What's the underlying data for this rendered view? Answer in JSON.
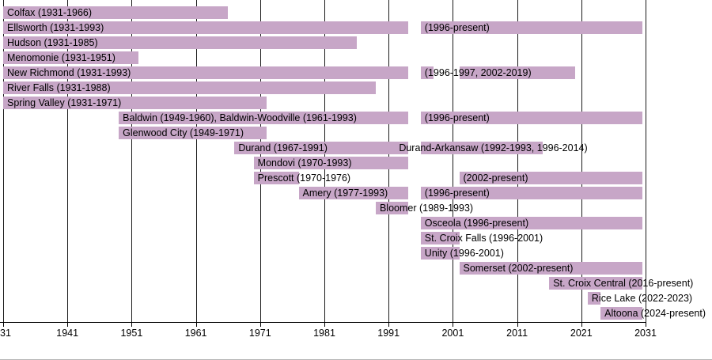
{
  "chart_data": {
    "type": "bar",
    "subtype": "horizontal-timeline-gantt",
    "title": "",
    "xlabel": "",
    "ylabel": "",
    "xlim": [
      1931,
      2031
    ],
    "grid": "vertical-on",
    "bar_color": "#c7a6c7",
    "gridline_color": "#1a1a1a",
    "axis_color": "#000000",
    "text_color": "#000000",
    "axis": {
      "ticks": [
        {
          "year": 1931,
          "label": "31",
          "align": "left"
        },
        {
          "year": 1941,
          "label": "1941"
        },
        {
          "year": 1951,
          "label": "1951"
        },
        {
          "year": 1961,
          "label": "1961"
        },
        {
          "year": 1971,
          "label": "1971"
        },
        {
          "year": 1981,
          "label": "1981"
        },
        {
          "year": 1991,
          "label": "1991"
        },
        {
          "year": 2001,
          "label": "2001"
        },
        {
          "year": 2011,
          "label": "2011"
        },
        {
          "year": 2021,
          "label": "2021"
        },
        {
          "year": 2031,
          "label": "2031"
        }
      ]
    },
    "rows": [
      {
        "name": "Colfax",
        "segments": [
          {
            "from": 1931,
            "to": 1966
          }
        ],
        "labels": [
          {
            "text": "Colfax (1931-1966)",
            "year": 1931
          }
        ]
      },
      {
        "name": "Ellsworth",
        "segments": [
          {
            "from": 1931,
            "to": 1994
          },
          {
            "from": 1996,
            "to": "present"
          }
        ],
        "labels": [
          {
            "text": "Ellsworth (1931-1993)",
            "year": 1931
          },
          {
            "text": "(1996-present)",
            "year": 1996
          }
        ]
      },
      {
        "name": "Hudson",
        "segments": [
          {
            "from": 1931,
            "to": 1986
          }
        ],
        "labels": [
          {
            "text": "Hudson (1931-1985)",
            "year": 1931
          }
        ]
      },
      {
        "name": "Menomonie",
        "segments": [
          {
            "from": 1931,
            "to": 1952
          }
        ],
        "labels": [
          {
            "text": "Menomonie (1931-1951)",
            "year": 1931
          }
        ]
      },
      {
        "name": "New Richmond",
        "segments": [
          {
            "from": 1931,
            "to": 1994
          },
          {
            "from": 1996,
            "to": 1998
          },
          {
            "from": 2002,
            "to": 2020
          }
        ],
        "labels": [
          {
            "text": "New Richmond (1931-1993)",
            "year": 1931
          },
          {
            "text": "(1996-1997, 2002-2019)",
            "year": 1996
          }
        ]
      },
      {
        "name": "River Falls",
        "segments": [
          {
            "from": 1931,
            "to": 1989
          }
        ],
        "labels": [
          {
            "text": "River Falls (1931-1988)",
            "year": 1931
          }
        ]
      },
      {
        "name": "Spring Valley",
        "segments": [
          {
            "from": 1931,
            "to": 1972
          }
        ],
        "labels": [
          {
            "text": "Spring Valley (1931-1971)",
            "year": 1931
          }
        ]
      },
      {
        "name": "Baldwin / Baldwin-Woodville",
        "segments": [
          {
            "from": 1949,
            "to": 1994
          },
          {
            "from": 1996,
            "to": "present"
          }
        ],
        "labels": [
          {
            "text": "Baldwin (1949-1960), Baldwin-Woodville (1961-1993)",
            "year": 1949
          },
          {
            "text": "(1996-present)",
            "year": 1996
          }
        ]
      },
      {
        "name": "Glenwood City",
        "segments": [
          {
            "from": 1949,
            "to": 1972
          }
        ],
        "labels": [
          {
            "text": "Glenwood City (1949-1971)",
            "year": 1949
          }
        ]
      },
      {
        "name": "Durand / Durand-Arkansaw",
        "segments": [
          {
            "from": 1967,
            "to": 1994
          },
          {
            "from": 1996,
            "to": 2015
          }
        ],
        "labels": [
          {
            "text": "Durand (1967-1991)",
            "year": 1967
          },
          {
            "text": "Durand-Arkansaw (1992-1993, 1996-2014)",
            "year": 1992
          }
        ]
      },
      {
        "name": "Mondovi",
        "segments": [
          {
            "from": 1970,
            "to": 1994
          }
        ],
        "labels": [
          {
            "text": "Mondovi (1970-1993)",
            "year": 1970
          }
        ]
      },
      {
        "name": "Prescott",
        "segments": [
          {
            "from": 1970,
            "to": 1977
          },
          {
            "from": 2002,
            "to": "present"
          }
        ],
        "labels": [
          {
            "text": "Prescott (1970-1976)",
            "year": 1970
          },
          {
            "text": "(2002-present)",
            "year": 2002
          }
        ]
      },
      {
        "name": "Amery",
        "segments": [
          {
            "from": 1977,
            "to": 1994
          },
          {
            "from": 1996,
            "to": "present"
          }
        ],
        "labels": [
          {
            "text": "Amery (1977-1993)",
            "year": 1977
          },
          {
            "text": "(1996-present)",
            "year": 1996
          }
        ]
      },
      {
        "name": "Bloomer",
        "segments": [
          {
            "from": 1989,
            "to": 1994
          }
        ],
        "labels": [
          {
            "text": "Bloomer (1989-1993)",
            "year": 1989
          }
        ]
      },
      {
        "name": "Osceola",
        "segments": [
          {
            "from": 1996,
            "to": "present"
          }
        ],
        "labels": [
          {
            "text": "Osceola (1996-present)",
            "year": 1996
          }
        ]
      },
      {
        "name": "St. Croix Falls",
        "segments": [
          {
            "from": 1996,
            "to": 2002
          }
        ],
        "labels": [
          {
            "text": "St. Croix Falls (1996-2001)",
            "year": 1996
          }
        ]
      },
      {
        "name": "Unity",
        "segments": [
          {
            "from": 1996,
            "to": 2002
          }
        ],
        "labels": [
          {
            "text": "Unity (1996-2001)",
            "year": 1996
          }
        ]
      },
      {
        "name": "Somerset",
        "segments": [
          {
            "from": 2002,
            "to": "present"
          }
        ],
        "labels": [
          {
            "text": "Somerset (2002-present)",
            "year": 2002
          }
        ]
      },
      {
        "name": "St. Croix Central",
        "segments": [
          {
            "from": 2016,
            "to": "present"
          }
        ],
        "labels": [
          {
            "text": "St. Croix Central (2016-present)",
            "year": 2016
          }
        ]
      },
      {
        "name": "Rice Lake",
        "segments": [
          {
            "from": 2022,
            "to": 2024
          }
        ],
        "labels": [
          {
            "text": "Rice Lake (2022-2023)",
            "year": 2022
          }
        ]
      },
      {
        "name": "Altoona",
        "segments": [
          {
            "from": 2024,
            "to": "present"
          }
        ],
        "labels": [
          {
            "text": "Altoona (2024-present)",
            "year": 2024
          }
        ]
      }
    ]
  }
}
